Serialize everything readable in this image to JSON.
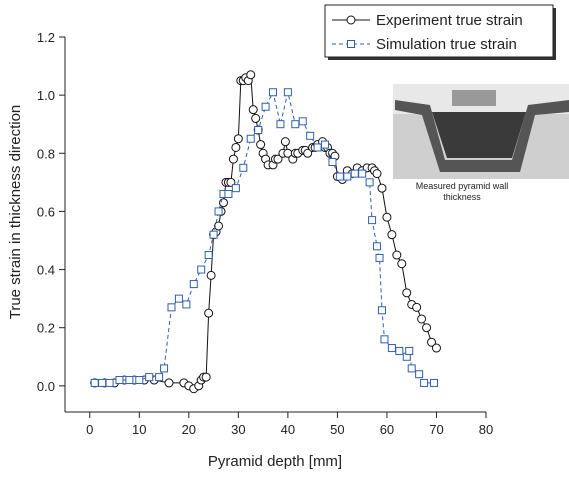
{
  "chart_data": {
    "type": "line",
    "xlabel": "Pyramid depth [mm]",
    "ylabel": "True strain in thickness direction",
    "annotation": "Measured pyramid wall thickness",
    "xlim": [
      -5,
      80
    ],
    "ylim": [
      -0.09,
      1.2
    ],
    "xticks": [
      0,
      10,
      20,
      30,
      40,
      50,
      60,
      70,
      80
    ],
    "yticks": [
      {
        "value": 0,
        "label": "0.0"
      },
      0.2,
      0.4,
      0.6,
      0.8,
      {
        "value": 1,
        "label": "1.0"
      },
      1.2
    ],
    "legend": "top-right",
    "series": [
      {
        "name": "Experiment true strain",
        "color": "#111111",
        "marker": "circle",
        "dash": false,
        "x": [
          1,
          3,
          5,
          7,
          9,
          11,
          13,
          16,
          19,
          20,
          21,
          22,
          22.5,
          23,
          23.5,
          24,
          24.5,
          25,
          25.5,
          26,
          26.5,
          27,
          27.5,
          28,
          28.5,
          29,
          29.5,
          30,
          30.5,
          31,
          31.5,
          32,
          32.5,
          33,
          33.5,
          34,
          34.5,
          35,
          35.5,
          36,
          37,
          37.5,
          38,
          39,
          39.5,
          40,
          41,
          41.5,
          42,
          43,
          43.5,
          44,
          45,
          45.5,
          46,
          47,
          47.5,
          48,
          48.5,
          49,
          49.5,
          50,
          51,
          52,
          53,
          54,
          55,
          56,
          57,
          57.5,
          58,
          59,
          60,
          61,
          62,
          63,
          64,
          65,
          66,
          67,
          68,
          69,
          70
        ],
        "values": [
          0.01,
          0.01,
          0.01,
          0.02,
          0.02,
          0.02,
          0.02,
          0.01,
          0.01,
          0.0,
          -0.01,
          0.0,
          0.02,
          0.03,
          0.03,
          0.25,
          0.38,
          0.52,
          0.53,
          0.55,
          0.6,
          0.63,
          0.7,
          0.7,
          0.7,
          0.78,
          0.82,
          0.85,
          1.05,
          1.05,
          1.06,
          1.05,
          1.07,
          0.95,
          0.92,
          0.88,
          0.83,
          0.8,
          0.78,
          0.76,
          0.76,
          0.78,
          0.78,
          0.8,
          0.84,
          0.8,
          0.78,
          0.8,
          0.8,
          0.81,
          0.81,
          0.8,
          0.82,
          0.82,
          0.83,
          0.84,
          0.82,
          0.82,
          0.8,
          0.8,
          0.79,
          0.72,
          0.71,
          0.74,
          0.73,
          0.75,
          0.74,
          0.75,
          0.75,
          0.74,
          0.73,
          0.68,
          0.58,
          0.52,
          0.45,
          0.42,
          0.32,
          0.28,
          0.27,
          0.23,
          0.2,
          0.15,
          0.13
        ]
      },
      {
        "name": "Simulation true strain",
        "color": "#2f5faf",
        "marker": "square",
        "dash": true,
        "x": [
          1,
          2.5,
          4,
          6,
          8,
          10,
          12,
          14,
          15,
          16.5,
          18,
          19.5,
          21,
          22.5,
          24,
          25,
          26,
          27,
          28,
          29.5,
          31,
          32.5,
          34,
          35.5,
          37,
          38.5,
          40,
          41.5,
          43,
          44.5,
          46,
          47.5,
          49,
          50.5,
          52,
          53.5,
          55,
          56.5,
          57,
          58,
          58.5,
          59,
          59.5,
          61,
          62.5,
          64,
          64.5,
          65,
          66.5,
          67.5,
          69.5
        ],
        "values": [
          0.01,
          0.01,
          0.01,
          0.02,
          0.02,
          0.02,
          0.03,
          0.03,
          0.06,
          0.27,
          0.3,
          0.28,
          0.35,
          0.4,
          0.45,
          0.52,
          0.6,
          0.66,
          0.66,
          0.68,
          0.75,
          0.85,
          0.88,
          0.96,
          1.01,
          0.9,
          1.01,
          0.9,
          0.91,
          0.86,
          0.82,
          0.83,
          0.77,
          0.72,
          0.72,
          0.73,
          0.73,
          0.7,
          0.57,
          0.48,
          0.44,
          0.26,
          0.16,
          0.13,
          0.12,
          0.1,
          0.12,
          0.06,
          0.04,
          0.01,
          0.01
        ]
      }
    ]
  }
}
